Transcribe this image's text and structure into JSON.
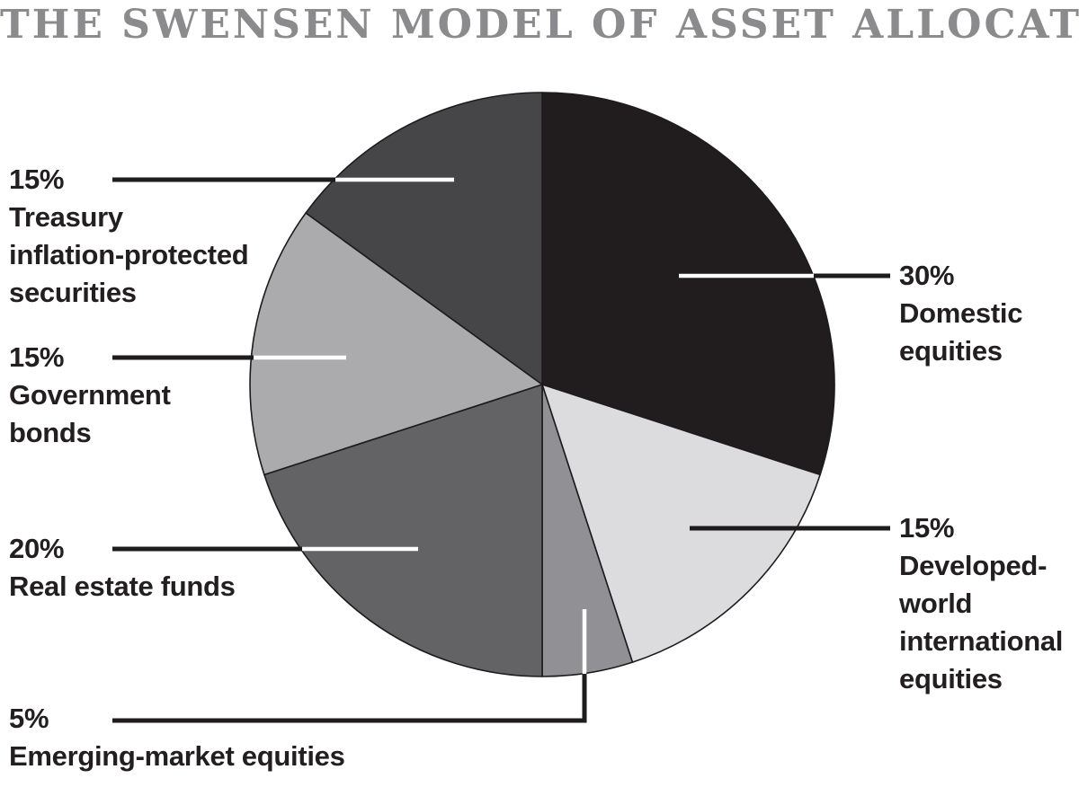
{
  "title": "THE SWENSEN MODEL OF ASSET ALLOCATION",
  "colors": {
    "title_gray": "#8b8b8e",
    "label_ink": "#231f20",
    "line_ink": "#1d1b1c",
    "line_white": "#ffffff",
    "background": "#ffffff"
  },
  "chart_data": {
    "type": "pie",
    "title": "THE SWENSEN MODEL OF ASSET ALLOCATION",
    "start_angle": "top",
    "direction": "clockwise",
    "total": 100,
    "legend_position": "none (outside labels with leader lines)",
    "slices": [
      {
        "id": "domestic-equities",
        "label": "Domestic equities",
        "pct_label": "30%",
        "value": 30,
        "color": "#211d1e",
        "label_lines": [
          "30%",
          "Domestic",
          "equities"
        ]
      },
      {
        "id": "developed-world-international-equities",
        "label": "Developed-world international equities",
        "pct_label": "15%",
        "value": 15,
        "color": "#dcdbdd",
        "label_lines": [
          "15%",
          "Developed-",
          "world",
          "international",
          "equities"
        ]
      },
      {
        "id": "emerging-market-equities",
        "label": "Emerging-market equities",
        "pct_label": "5%",
        "value": 5,
        "color": "#919195",
        "label_lines": [
          "5%",
          "Emerging-market equities"
        ]
      },
      {
        "id": "real-estate-funds",
        "label": "Real estate funds",
        "pct_label": "20%",
        "value": 20,
        "color": "#636265",
        "label_lines": [
          "20%",
          "Real estate funds"
        ]
      },
      {
        "id": "government-bonds",
        "label": "Government bonds",
        "pct_label": "15%",
        "value": 15,
        "color": "#ababae",
        "label_lines": [
          "15%",
          "Government",
          "bonds"
        ]
      },
      {
        "id": "treasury-inflation-protected-securities",
        "label": "Treasury inflation-protected securities",
        "pct_label": "15%",
        "value": 15,
        "color": "#464649",
        "label_lines": [
          "15%",
          "Treasury",
          "inflation-protected",
          "securities"
        ]
      }
    ]
  }
}
